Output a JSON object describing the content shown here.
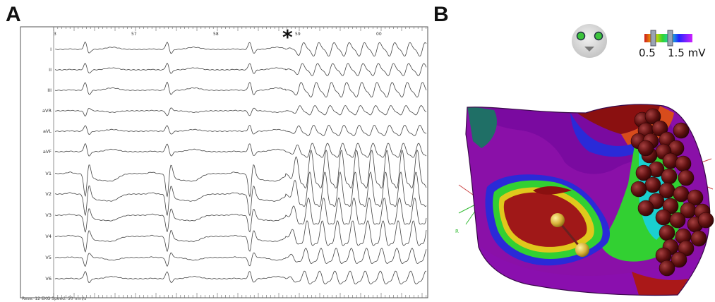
{
  "panels": {
    "a": "A",
    "b": "B"
  },
  "ecg": {
    "time_ticks": [
      "3",
      "57",
      "58",
      "59",
      "00"
    ],
    "leads": [
      "I",
      "II",
      "III",
      "aVR",
      "aVL",
      "aVF",
      "V1",
      "V2",
      "V3",
      "V4",
      "V5",
      "V6"
    ],
    "marker": "*",
    "footer": "Rese: 12 EKG    Speed: 50 mm/s"
  },
  "map": {
    "scale_min": "0.5",
    "scale_max": "1.5 mV",
    "axis_label": "R",
    "colors": {
      "low": "#8b0d0d",
      "high": "#a314c9",
      "mid": "#2bd62b"
    }
  }
}
